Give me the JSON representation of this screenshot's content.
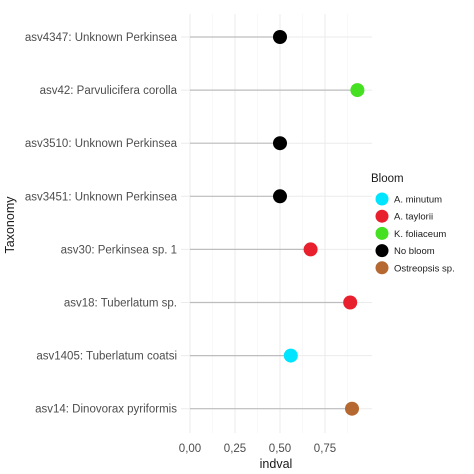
{
  "chart_data": {
    "type": "lollipop",
    "title": "",
    "xlabel": "indval",
    "ylabel": "Taxonomy",
    "xlim": [
      0,
      0.97
    ],
    "x_ticks": [
      "0,00",
      "0,25",
      "0,50",
      "0,75"
    ],
    "x_tick_values": [
      0,
      0.25,
      0.5,
      0.75
    ],
    "grid": true,
    "legend_position": "right",
    "legend": {
      "title": "Bloom",
      "entries": [
        {
          "label": "A. minutum",
          "color": "#00E5FF"
        },
        {
          "label": "A. taylorii",
          "color": "#E8202E"
        },
        {
          "label": "K. foliaceum",
          "color": "#44E021"
        },
        {
          "label": "No bloom",
          "color": "#000000"
        },
        {
          "label": "Ostreopsis sp.",
          "color": "#B5682F"
        }
      ]
    },
    "rows": [
      {
        "label": "asv4347: Unknown Perkinsea",
        "value": 0.5,
        "bloom": "No bloom"
      },
      {
        "label": "asv42: Parvulicifera corolla",
        "value": 0.93,
        "bloom": "K. foliaceum"
      },
      {
        "label": "asv3510: Unknown Perkinsea",
        "value": 0.5,
        "bloom": "No bloom"
      },
      {
        "label": "asv3451: Unknown Perkinsea",
        "value": 0.5,
        "bloom": "No bloom"
      },
      {
        "label": "asv30: Perkinsea sp. 1",
        "value": 0.67,
        "bloom": "A. taylorii"
      },
      {
        "label": "asv18: Tuberlatum sp.",
        "value": 0.89,
        "bloom": "A. taylorii"
      },
      {
        "label": "asv1405: Tuberlatum coatsi",
        "value": 0.56,
        "bloom": "A. minutum"
      },
      {
        "label": "asv14: Dinovorax pyriformis",
        "value": 0.9,
        "bloom": "Ostreopsis sp."
      }
    ]
  }
}
